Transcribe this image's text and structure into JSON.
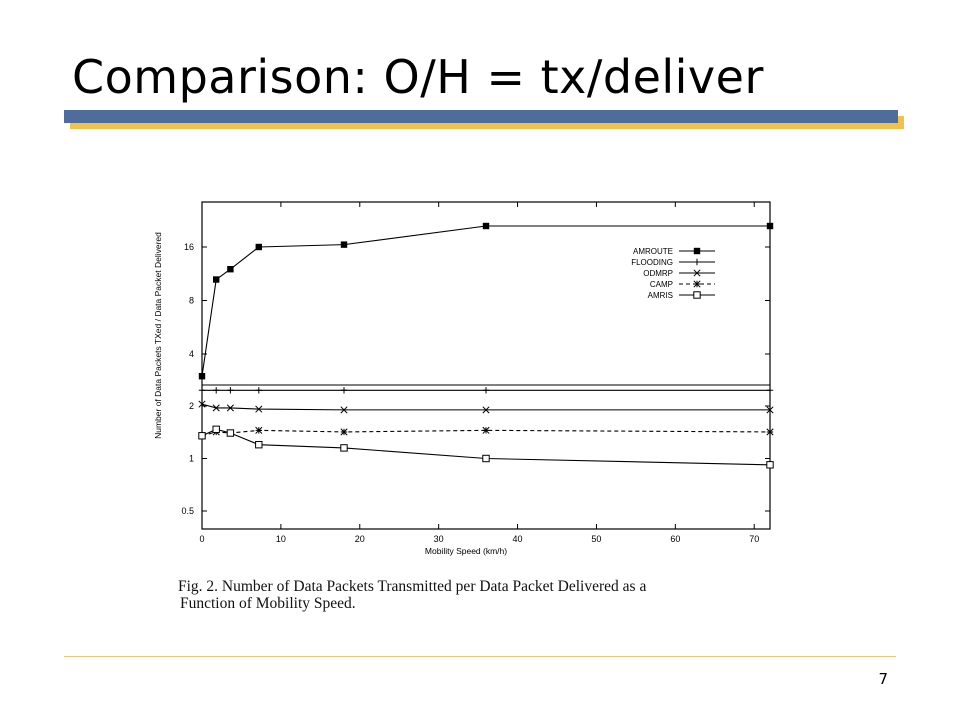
{
  "slide": {
    "title": "Comparison:  O/H = tx/deliver",
    "page_number": "7",
    "accent_colors": {
      "blue_bar": "#4f6d9c",
      "gold_bar": "#f2c14a",
      "footer_rule": "#e8c878"
    }
  },
  "caption": {
    "line1": "Fig. 2.   Number of Data Packets Transmitted per Data Packet Delivered as a",
    "line2": "Function of Mobility Speed."
  },
  "chart_data": {
    "type": "line",
    "xlabel": "Mobility Speed (km/h)",
    "ylabel": "Number of Data Packets TXed / Data Packet Delivered",
    "xlim": [
      0,
      72
    ],
    "x_ticks": [
      0,
      10,
      20,
      30,
      40,
      50,
      60,
      70
    ],
    "y_scale": "log",
    "y_ticks_upper": [
      "16",
      "8",
      "4"
    ],
    "y_ticks_lower": [
      "2",
      "1",
      "0.5"
    ],
    "axis_break": true,
    "grid": false,
    "legend_position": "top-right",
    "series": [
      {
        "name": "AMROUTE",
        "marker": "filled-square",
        "style": "solid",
        "x": [
          0,
          1.8,
          3.6,
          7.2,
          18,
          36,
          72
        ],
        "y": [
          3,
          10.5,
          12,
          16,
          16.5,
          21,
          21
        ]
      },
      {
        "name": "FLOODING",
        "marker": "plus",
        "style": "solid",
        "x": [
          0,
          1.8,
          3.6,
          7.2,
          18,
          36,
          72
        ],
        "y": [
          2.5,
          2.5,
          2.5,
          2.5,
          2.5,
          2.5,
          2.5
        ]
      },
      {
        "name": "ODMRP",
        "marker": "x",
        "style": "solid",
        "x": [
          0,
          1.8,
          3.6,
          7.2,
          18,
          36,
          72
        ],
        "y": [
          2.05,
          1.95,
          1.95,
          1.92,
          1.9,
          1.9,
          1.9
        ]
      },
      {
        "name": "CAMP",
        "marker": "star",
        "style": "dashed",
        "x": [
          0,
          1.8,
          3.6,
          7.2,
          18,
          36,
          72
        ],
        "y": [
          1.35,
          1.42,
          1.4,
          1.45,
          1.42,
          1.45,
          1.42
        ]
      },
      {
        "name": "AMRIS",
        "marker": "hollow-square",
        "style": "solid",
        "x": [
          0,
          1.8,
          3.6,
          7.2,
          18,
          36,
          72
        ],
        "y": [
          1.35,
          1.47,
          1.4,
          1.2,
          1.15,
          1.0,
          0.92
        ]
      }
    ]
  }
}
